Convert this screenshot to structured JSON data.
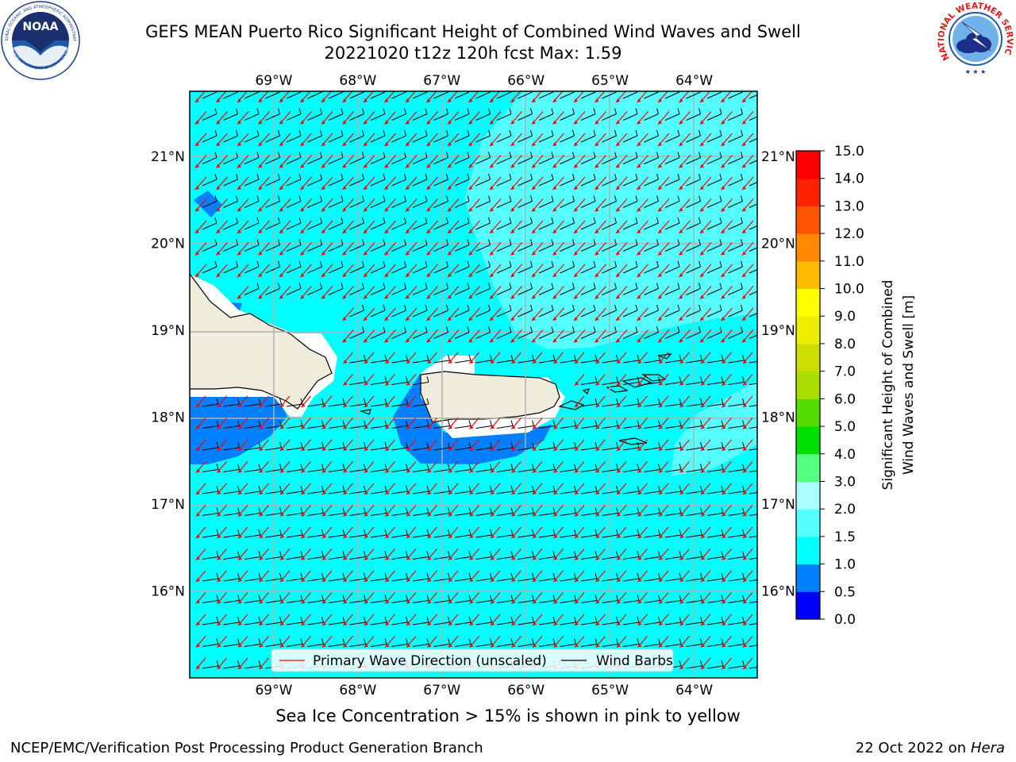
{
  "header": {
    "title_line1": "GEFS MEAN Puerto Rico Significant Height of Combined Wind Waves and Swell",
    "title_line2": "20221020 t12z 120h fcst   Max: 1.59"
  },
  "map": {
    "lon_ticks": [
      "69°W",
      "68°W",
      "67°W",
      "66°W",
      "65°W",
      "64°W"
    ],
    "lat_ticks": [
      "21°N",
      "20°N",
      "19°N",
      "18°N",
      "17°N",
      "16°N"
    ],
    "lon_values": [
      -69,
      -68,
      -67,
      -66,
      -65,
      -64
    ],
    "lat_values": [
      21,
      20,
      19,
      18,
      17,
      16
    ],
    "extent": {
      "lon": [
        -70,
        -63.25
      ],
      "lat": [
        15,
        21.75
      ]
    },
    "field_max": 1.59,
    "land_color": "#efecdc",
    "ocean_base_color": "#00ffff",
    "legend": {
      "wave_label": "Primary Wave Direction (unscaled)",
      "wind_label": "Wind Barbs",
      "wave_color": "#ff0000",
      "wind_color": "#000000"
    }
  },
  "colorbar": {
    "label_line1": "Significant Height of Combined",
    "label_line2": "Wind Waves and Swell [m]",
    "levels": [
      "0.0",
      "0.5",
      "1.0",
      "1.5",
      "2.0",
      "3.0",
      "4.0",
      "5.0",
      "6.0",
      "7.0",
      "8.0",
      "9.0",
      "10.0",
      "11.0",
      "12.0",
      "13.0",
      "14.0",
      "15.0"
    ],
    "colors": [
      "#0000ff",
      "#0080ff",
      "#00ffff",
      "#55ffff",
      "#aaffff",
      "#55ff80",
      "#00e000",
      "#55dd00",
      "#aadd00",
      "#ccdd00",
      "#eeee00",
      "#ffff00",
      "#ffbb00",
      "#ff8800",
      "#ff5500",
      "#ff2200",
      "#ff0000"
    ]
  },
  "ice_note": "Sea Ice Concentration > 15% is shown in pink to yellow",
  "footer": {
    "left": "NCEP/EMC/Verification Post Processing Product Generation Branch",
    "right_date": "22 Oct 2022 on ",
    "right_host": "Hera"
  },
  "logos": {
    "noaa_text": "NOAA",
    "noaa_ring_top": "NATIONAL OCEANIC AND ATMOSPHERIC ADMINISTRATION",
    "noaa_ring_bottom": "U.S. DEPARTMENT OF COMMERCE",
    "nws_ring": "NATIONAL WEATHER SERVICE"
  }
}
